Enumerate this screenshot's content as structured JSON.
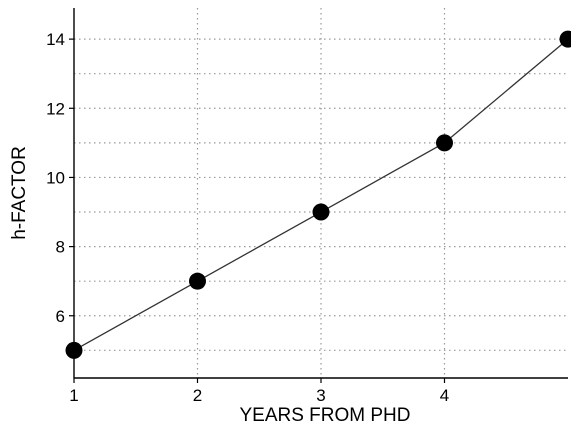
{
  "chart_data": {
    "type": "line",
    "title": "",
    "xlabel": "YEARS FROM PHD",
    "ylabel": "h-FACTOR",
    "x": [
      1,
      2,
      3,
      4,
      5
    ],
    "series": [
      {
        "values": [
          5,
          7,
          9,
          11,
          14
        ]
      }
    ],
    "xlim": [
      1,
      5
    ],
    "ylim": [
      4.2,
      14.9
    ],
    "x_ticks": [
      1,
      2,
      3,
      4
    ],
    "x_tick_labels": [
      "1",
      "2",
      "3",
      "4"
    ],
    "y_ticks": [
      6,
      8,
      10,
      12,
      14
    ],
    "y_tick_labels": [
      "6",
      "8",
      "10",
      "12",
      "14"
    ],
    "y_minor_gridlines": [
      5,
      7,
      9,
      11,
      13
    ],
    "grid": true,
    "grid_style": "dotted",
    "marker": "filled-circle",
    "colors": {
      "line": "#333333",
      "marker": "#000000",
      "grid": "#9a9a9a",
      "axis": "#000000"
    }
  }
}
